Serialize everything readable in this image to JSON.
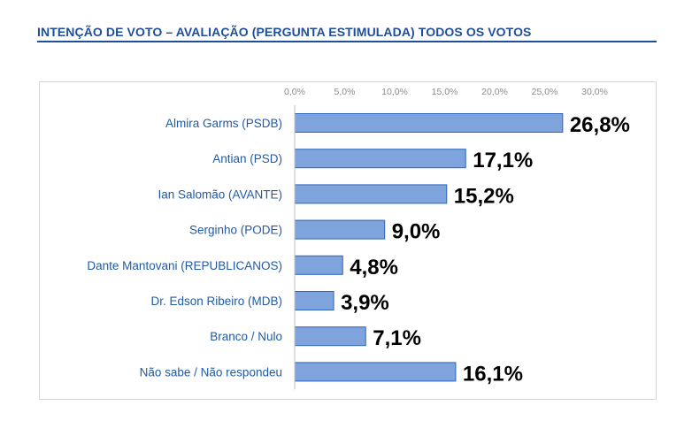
{
  "header": {
    "title": "INTENÇÃO DE VOTO – AVALIAÇÃO (PERGUNTA ESTIMULADA) TODOS OS VOTOS"
  },
  "colors": {
    "title": "#1f4e9c",
    "bar_fill": "#7fa4dd",
    "bar_border": "#2f63b8",
    "category_text": "#1f5aa6"
  },
  "chart_data": {
    "type": "bar",
    "orientation": "horizontal",
    "title": "INTENÇÃO DE VOTO – AVALIAÇÃO (PERGUNTA ESTIMULADA) TODOS OS VOTOS",
    "categories": [
      "Almira Garms (PSDB)",
      "Antian (PSD)",
      "Ian Salomão (AVANTE)",
      "Serginho (PODE)",
      "Dante Mantovani (REPUBLICANOS)",
      "Dr. Edson Ribeiro (MDB)",
      "Branco / Nulo",
      "Não sabe / Não respondeu"
    ],
    "values": [
      26.8,
      17.1,
      15.2,
      9.0,
      4.8,
      3.9,
      7.1,
      16.1
    ],
    "value_labels": [
      "26,8%",
      "17,1%",
      "15,2%",
      "9,0%",
      "4,8%",
      "3,9%",
      "7,1%",
      "16,1%"
    ],
    "x_ticks": [
      0,
      5,
      10,
      15,
      20,
      25,
      30
    ],
    "x_tick_labels": [
      "0,0%",
      "5,0%",
      "10,0%",
      "15,0%",
      "20,0%",
      "25,0%",
      "30,0%"
    ],
    "xlim": [
      0,
      30
    ],
    "x_axis_position": "top",
    "grid": false,
    "legend": "none",
    "xlabel": "",
    "ylabel": ""
  }
}
